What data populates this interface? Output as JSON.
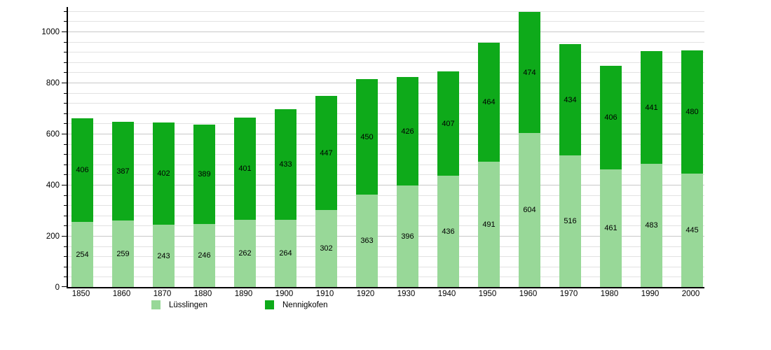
{
  "chart_data": {
    "type": "bar",
    "stacked": true,
    "title": "",
    "xlabel": "",
    "ylabel": "",
    "categories": [
      "1850",
      "1860",
      "1870",
      "1880",
      "1890",
      "1900",
      "1910",
      "1920",
      "1930",
      "1940",
      "1950",
      "1960",
      "1970",
      "1980",
      "1990",
      "2000"
    ],
    "series": [
      {
        "name": "Lüsslingen",
        "color": "#98d898",
        "values": [
          254,
          259,
          243,
          246,
          262,
          264,
          302,
          363,
          396,
          436,
          491,
          604,
          516,
          461,
          483,
          445
        ]
      },
      {
        "name": "Nennigkofen",
        "color": "#0eaa1a",
        "values": [
          406,
          387,
          402,
          389,
          401,
          433,
          447,
          450,
          426,
          407,
          464,
          474,
          434,
          406,
          441,
          480
        ]
      }
    ],
    "stack_totals": [
      660,
      646,
      645,
      635,
      663,
      697,
      749,
      813,
      822,
      843,
      955,
      1078,
      950,
      867,
      924,
      925
    ],
    "ylim": [
      0,
      1096
    ],
    "y_major_ticks": [
      0,
      200,
      400,
      600,
      800,
      1000
    ],
    "y_minor_step": 40,
    "grid": true,
    "legend_position": "bottom",
    "legend": [
      "Lüsslingen",
      "Nennigkofen"
    ]
  }
}
